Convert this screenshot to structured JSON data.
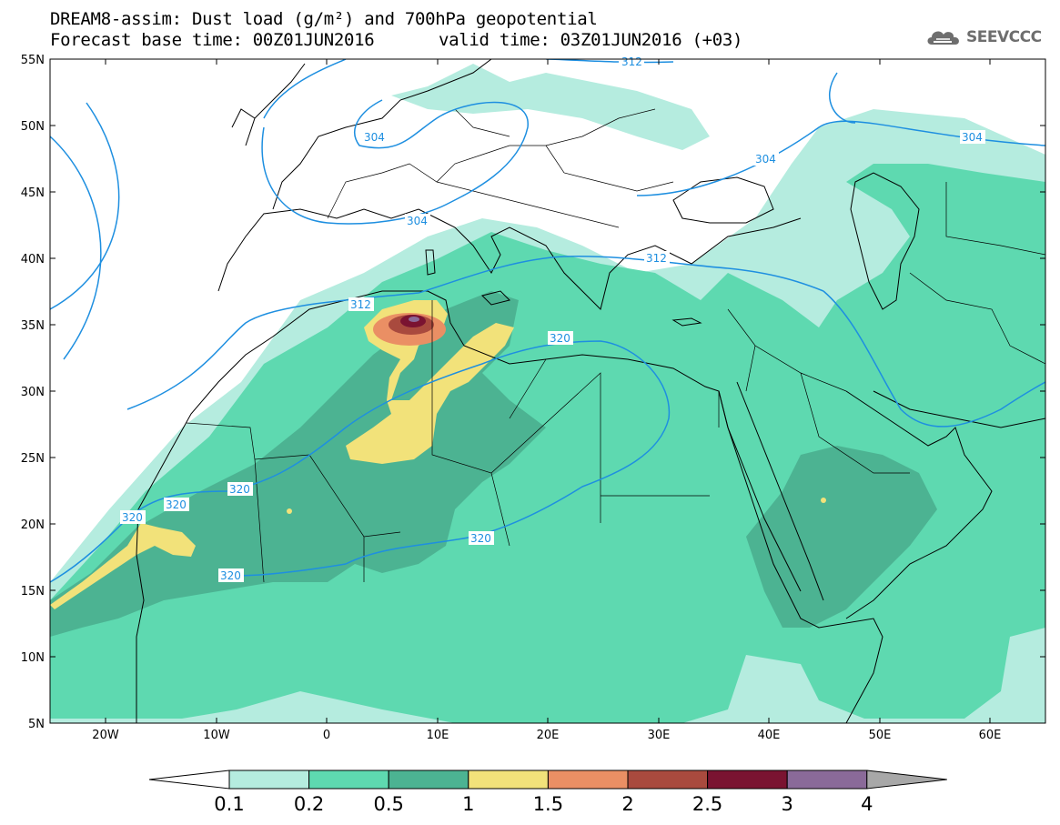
{
  "header": {
    "title_line1": "DREAM8-assim: Dust load (g/m²) and 700hPa geopotential",
    "title_line2_left": "Forecast base time: 00Z01JUN2016",
    "title_line2_right": "valid time: 03Z01JUN2016 (+03)"
  },
  "logo": {
    "text": "SEEVCCC",
    "icon": "cloud-logo-icon"
  },
  "axes": {
    "lat_labels": [
      "55N",
      "50N",
      "45N",
      "40N",
      "35N",
      "30N",
      "25N",
      "20N",
      "15N",
      "10N",
      "5N"
    ],
    "lon_labels": [
      "20W",
      "10W",
      "0",
      "10E",
      "20E",
      "30E",
      "40E",
      "50E",
      "60E"
    ]
  },
  "geopotential_labels": [
    "312",
    "304",
    "304",
    "304",
    "304",
    "312",
    "312",
    "320",
    "320",
    "320",
    "320",
    "320",
    "320"
  ],
  "colorbar": {
    "tick_labels": [
      "0.1",
      "0.2",
      "0.5",
      "1",
      "1.5",
      "2",
      "2.5",
      "3",
      "4"
    ],
    "colors": [
      "#b5ecdf",
      "#5ed9b0",
      "#4cb392",
      "#f2e27a",
      "#ea8f64",
      "#a94a3e",
      "#7a1331",
      "#8a6a99"
    ],
    "arrow_left_color": "#ffffff",
    "arrow_right_color": "#a8a8a8"
  },
  "colors": {
    "contour": "#1e8fe0",
    "coast": "#000000"
  }
}
